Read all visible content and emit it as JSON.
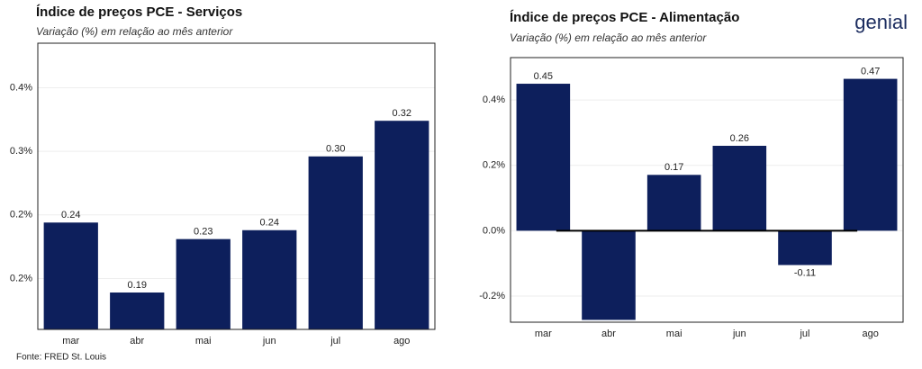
{
  "brand": "genial",
  "source": "Fonte: FRED St. Louis",
  "chart_data": [
    {
      "type": "bar",
      "title": "Índice de preços PCE - Serviços",
      "subtitle": "Variação (%) em relação ao mês anterior",
      "categories": [
        "mar",
        "abr",
        "mai",
        "jun",
        "jul",
        "ago"
      ],
      "values": [
        0.244,
        0.189,
        0.231,
        0.238,
        0.296,
        0.324
      ],
      "value_labels": [
        "0.24",
        "0.19",
        "0.23",
        "0.24",
        "0.30",
        "0.32"
      ],
      "color": "#0d1f5c",
      "ylim": [
        0.16,
        0.385
      ],
      "yticks": [
        {
          "value": 0.2,
          "label": "0.2%"
        },
        {
          "value": 0.25,
          "label": "0.2%"
        },
        {
          "value": 0.3,
          "label": "0.3%"
        },
        {
          "value": 0.35,
          "label": "0.4%"
        }
      ],
      "grid": true
    },
    {
      "type": "bar",
      "title": "Índice de preços PCE - Alimentação",
      "subtitle": "Variação (%) em relação ao mês anterior",
      "categories": [
        "mar",
        "abr",
        "mai",
        "jun",
        "jul",
        "ago"
      ],
      "values": [
        0.45,
        -0.273,
        0.171,
        0.26,
        -0.105,
        0.465
      ],
      "value_labels": [
        "0.45",
        null,
        "0.17",
        "0.26",
        "-0.11",
        "0.47"
      ],
      "color": "#0d1f5c",
      "ylim": [
        -0.28,
        0.53
      ],
      "yticks": [
        {
          "value": -0.2,
          "label": "-0.2%"
        },
        {
          "value": 0,
          "label": "0.0%"
        },
        {
          "value": 0.2,
          "label": "0.2%"
        },
        {
          "value": 0.4,
          "label": "0.4%"
        }
      ],
      "grid": true
    }
  ]
}
